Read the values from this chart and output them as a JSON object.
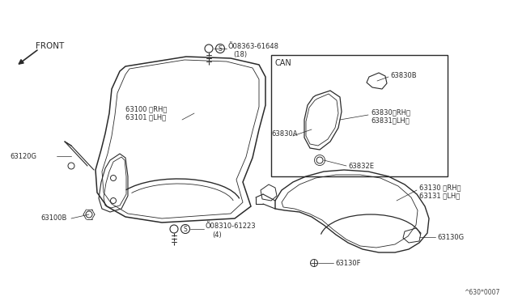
{
  "bg_color": "#ffffff",
  "line_color": "#2a2a2a",
  "part_numbers": {
    "front_label": "FRONT",
    "fender_rh": "63100 〈RH〉",
    "fender_lh": "63101 〈LH〉",
    "bracket": "63120G",
    "bolt1": "63100B",
    "screw1_label": "Õ08363-61648",
    "screw1_qty": "(18)",
    "screw2_label": "Õ08310-61223",
    "screw2_qty": "(4)",
    "liner_rh": "63130 〈RH〉",
    "liner_lh": "63131 〈LH〉",
    "liner_g": "63130G",
    "liner_f": "63130F",
    "can_label": "CAN",
    "bracket_a": "63830A",
    "bracket_b": "63830B",
    "bracket_rh": "63830〈RH〉",
    "bracket_lh": "63831〈LH〉",
    "bracket_e": "63832E"
  },
  "footer": "^630*0007"
}
